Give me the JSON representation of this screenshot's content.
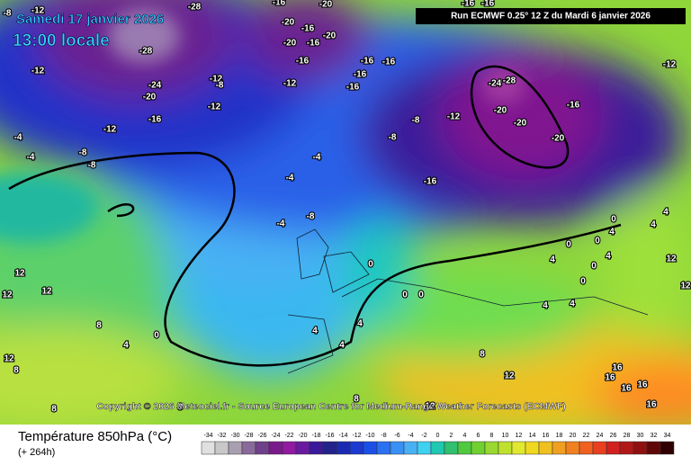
{
  "header": {
    "date": "Samedi 17 janvier 2026",
    "time": "13:00 locale",
    "run": "Run ECMWF 0.25° 12 Z du Mardi 6 janvier 2026"
  },
  "copyright": "Copyright © 2026 Meteociel.fr - Source European Centre for Medium-Range Weather Forecasts (ECMWF)",
  "legend": {
    "title": "Température 850hPa (°C)",
    "subtitle": "(+ 264h)",
    "scale": [
      -34,
      -32,
      -30,
      -28,
      -26,
      -24,
      -22,
      -20,
      -18,
      -16,
      -14,
      -12,
      -10,
      -8,
      -6,
      -4,
      -2,
      0,
      2,
      4,
      6,
      8,
      10,
      12,
      14,
      16,
      18,
      20,
      22,
      24,
      26,
      28,
      30,
      32,
      34
    ]
  },
  "map": {
    "contour_labels": [
      "-8",
      "-12",
      "-28",
      "-28",
      "-24",
      "-20",
      "-16",
      "-12",
      "-12",
      "-4",
      "-4",
      "-8",
      "-8",
      "-12",
      "-8",
      "-12",
      "-16",
      "-20",
      "-16",
      "-20",
      "-16",
      "-20",
      "-20",
      "-16",
      "-12",
      "-16",
      "-16",
      "-16",
      "-16",
      "-16",
      "-16",
      "-24",
      "-28",
      "-20",
      "-20",
      "-16",
      "-20",
      "-12",
      "-8",
      "-8",
      "-4",
      "-4",
      "-4",
      "-8",
      "-16",
      "-12",
      "0",
      "4",
      "4",
      "4",
      "0",
      "0",
      "4",
      "4",
      "0",
      "0",
      "4",
      "4",
      "12",
      "12",
      "0",
      "0",
      "0",
      "4",
      "4",
      "4",
      "0",
      "4",
      "8",
      "12",
      "8",
      "12",
      "12",
      "12",
      "8",
      "8",
      "8",
      "8",
      "12",
      "16",
      "16",
      "16",
      "16",
      "16",
      "12"
    ]
  }
}
